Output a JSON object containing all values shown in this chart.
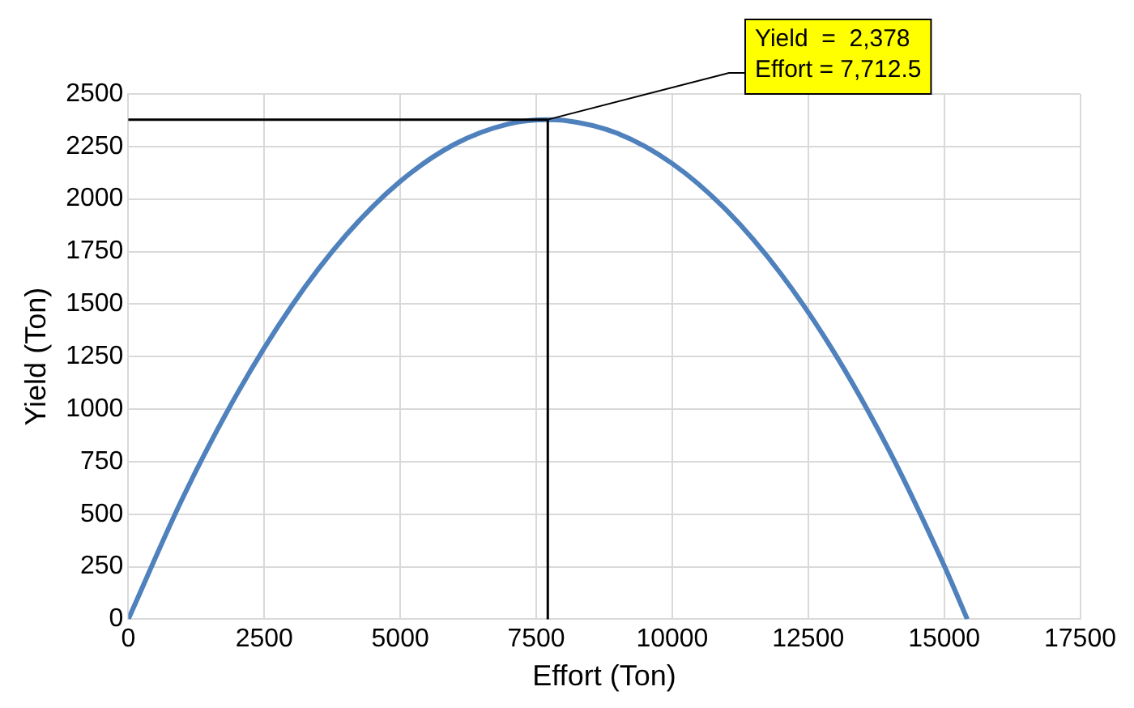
{
  "chart_data": {
    "type": "line",
    "xlabel": "Effort (Ton)",
    "ylabel": "Yield (Ton)",
    "series": [
      {
        "color": "#4f81bd",
        "x": [
          0,
          1000,
          2000,
          3000,
          4000,
          5000,
          6000,
          7000,
          7712.5,
          8000,
          9000,
          10000,
          11000,
          12000,
          13000,
          14000,
          15000,
          15425
        ],
        "values": [
          0,
          577,
          1073,
          1490,
          1827,
          2084,
          2261,
          2358,
          2378,
          2375,
          2312,
          2169,
          1946,
          1643,
          1260,
          797,
          255,
          0
        ]
      }
    ],
    "xlim": [
      0,
      17500
    ],
    "xticks": [
      0,
      2500,
      5000,
      7500,
      10000,
      12500,
      15000,
      17500
    ],
    "ylim": [
      0,
      2500
    ],
    "yticks": [
      0,
      250,
      500,
      750,
      1000,
      1250,
      1500,
      1750,
      2000,
      2250,
      2500
    ],
    "grid": true,
    "legend": false,
    "marker": "none",
    "line_style": "solid",
    "ref_lines": [
      {
        "axis": "y",
        "value": 2378,
        "color": "#000000"
      },
      {
        "axis": "x",
        "value": 7712.5,
        "color": "#000000"
      }
    ],
    "annotations": [
      {
        "text": "Yield  =  2,378\nEffort = 7,712.5",
        "x": 7712.5,
        "y": 2378
      }
    ]
  }
}
